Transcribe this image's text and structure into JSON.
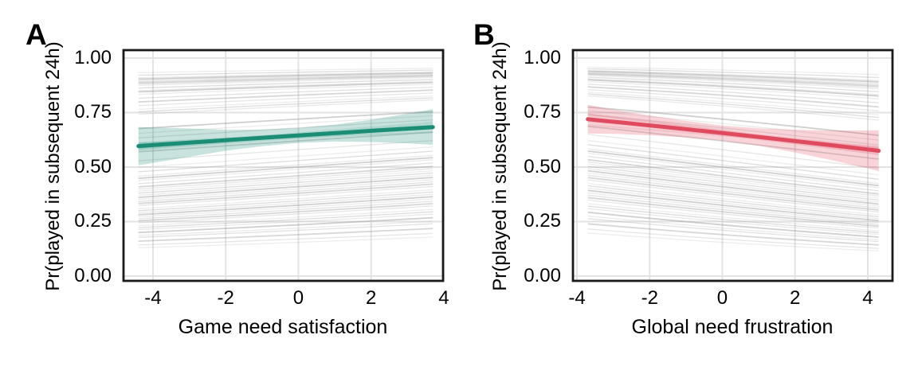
{
  "figure": {
    "background": "#ffffff",
    "text_color": "#000000"
  },
  "chart_data": [
    {
      "type": "line",
      "panel_label": "A",
      "xlabel": "Game need satisfaction",
      "ylabel": "Pr(played in subsequent 24h)",
      "xlim": [
        -4.81,
        3.98
      ],
      "ylim": [
        -0.022,
        1.0365
      ],
      "x_ticks": [
        -4,
        -2,
        0,
        2,
        4
      ],
      "x_tick_labels": [
        "-4",
        "-2",
        "0",
        "2",
        "4"
      ],
      "y_ticks": [
        0,
        0.25,
        0.5,
        0.75,
        1
      ],
      "y_tick_labels": [
        "0.00",
        "0.25",
        "0.50",
        "0.75",
        "1.00"
      ],
      "x_data_range": [
        -4.4,
        3.7
      ],
      "grid": true,
      "legend": false,
      "fixed_effect": {
        "intercept_logit": 0.597,
        "slope_logit": 0.047,
        "p_at_xmin": 0.6,
        "p_at_xmax": 0.68
      },
      "ci_band": {
        "x": [
          -4.4,
          -3.0,
          -2.0,
          -1.0,
          0.0,
          1.0,
          2.0,
          3.0,
          3.7
        ],
        "lower": [
          0.508,
          0.547,
          0.575,
          0.596,
          0.611,
          0.617,
          0.615,
          0.609,
          0.602
        ],
        "upper": [
          0.684,
          0.677,
          0.671,
          0.672,
          0.679,
          0.695,
          0.717,
          0.745,
          0.766
        ]
      },
      "posterior_draws": {
        "intercept_logit": [
          0.56,
          0.62,
          0.575,
          0.64,
          0.6,
          0.55,
          0.615,
          0.585
        ],
        "slope_logit": [
          0.028,
          0.04,
          0.055,
          0.062,
          0.036,
          0.05,
          0.058,
          0.044
        ]
      },
      "random_lines": {
        "slope_logit": 0.047,
        "baseline_p": [
          0.945,
          0.935,
          0.925,
          0.92,
          0.915,
          0.91,
          0.905,
          0.9,
          0.895,
          0.885,
          0.875,
          0.87,
          0.86,
          0.845,
          0.83,
          0.815,
          0.8,
          0.79,
          0.78,
          0.72,
          0.7,
          0.68,
          0.62,
          0.58,
          0.55,
          0.53,
          0.51,
          0.5,
          0.49,
          0.475,
          0.46,
          0.45,
          0.44,
          0.43,
          0.42,
          0.41,
          0.4,
          0.39,
          0.38,
          0.37,
          0.355,
          0.345,
          0.335,
          0.325,
          0.315,
          0.305,
          0.295,
          0.285,
          0.27,
          0.26,
          0.25,
          0.235,
          0.22,
          0.21,
          0.19,
          0.17,
          0.155
        ]
      },
      "style": {
        "line_color": "#1b8c75",
        "band_opacity": 0.24,
        "spaghetti_color": "#8f8f8f",
        "grid_color": "#e3e3e3",
        "border_color": "#1a1a1a"
      }
    },
    {
      "type": "line",
      "panel_label": "B",
      "xlabel": "Global need frustration",
      "ylabel": "Pr(played in subsequent 24h)",
      "xlim": [
        -4.11,
        4.68
      ],
      "ylim": [
        -0.022,
        1.0365
      ],
      "x_ticks": [
        -4,
        -2,
        0,
        2,
        4
      ],
      "x_tick_labels": [
        "-4",
        "-2",
        "0",
        "2",
        "4"
      ],
      "y_ticks": [
        0,
        0.25,
        0.5,
        0.75,
        1
      ],
      "y_tick_labels": [
        "0.00",
        "0.25",
        "0.50",
        "0.75",
        "1.00"
      ],
      "x_data_range": [
        -3.7,
        4.3
      ],
      "grid": true,
      "legend": false,
      "fixed_effect": {
        "intercept_logit": 0.646,
        "slope_logit": -0.08,
        "p_at_xmin": 0.72,
        "p_at_xmax": 0.575
      },
      "ci_band": {
        "x": [
          -3.7,
          -3.0,
          -2.0,
          -1.0,
          0.0,
          1.0,
          2.0,
          3.0,
          4.0,
          4.3
        ],
        "lower": [
          0.654,
          0.652,
          0.646,
          0.636,
          0.621,
          0.598,
          0.567,
          0.532,
          0.494,
          0.481
        ],
        "upper": [
          0.786,
          0.764,
          0.736,
          0.712,
          0.691,
          0.678,
          0.671,
          0.668,
          0.668,
          0.669
        ]
      },
      "posterior_draws": {
        "intercept_logit": [
          0.6,
          0.67,
          0.63,
          0.7,
          0.645,
          0.61,
          0.66,
          0.685
        ],
        "slope_logit": [
          -0.058,
          -0.07,
          -0.092,
          -0.098,
          -0.066,
          -0.085,
          -0.076,
          -0.094
        ]
      },
      "random_lines": {
        "slope_logit": -0.08,
        "baseline_p": [
          0.945,
          0.935,
          0.925,
          0.92,
          0.915,
          0.91,
          0.905,
          0.9,
          0.895,
          0.885,
          0.875,
          0.87,
          0.86,
          0.845,
          0.83,
          0.815,
          0.8,
          0.79,
          0.78,
          0.72,
          0.7,
          0.68,
          0.62,
          0.58,
          0.55,
          0.53,
          0.51,
          0.5,
          0.49,
          0.475,
          0.46,
          0.45,
          0.44,
          0.43,
          0.42,
          0.41,
          0.4,
          0.39,
          0.38,
          0.37,
          0.355,
          0.345,
          0.335,
          0.325,
          0.315,
          0.305,
          0.295,
          0.285,
          0.27,
          0.26,
          0.25,
          0.235,
          0.22,
          0.21,
          0.19,
          0.17,
          0.155
        ]
      },
      "style": {
        "line_color": "#e04a5f",
        "band_opacity": 0.24,
        "spaghetti_color": "#8f8f8f",
        "grid_color": "#e3e3e3",
        "border_color": "#1a1a1a"
      }
    }
  ]
}
